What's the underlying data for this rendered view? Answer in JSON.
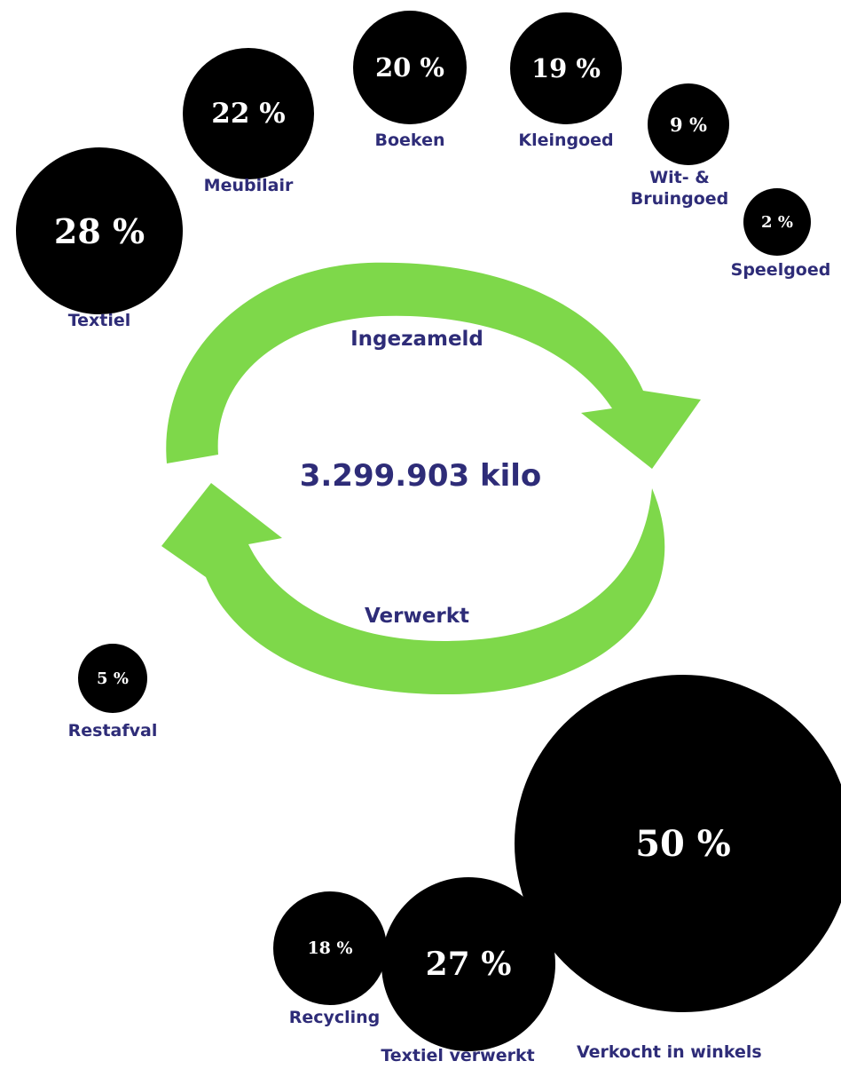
{
  "chart_data": [
    {
      "type": "bubble",
      "title": "Ingezameld",
      "categories": [
        "Textiel",
        "Meubilair",
        "Boeken",
        "Kleingoed",
        "Wit- & Bruingoed",
        "Speelgoed"
      ],
      "values": [
        28,
        22,
        20,
        19,
        9,
        2
      ],
      "value_labels": [
        "28 %",
        "22 %",
        "20 %",
        "19 %",
        "9 %",
        "2 %"
      ]
    },
    {
      "type": "bubble",
      "title": "Verwerkt",
      "categories": [
        "Restafval",
        "Recycling",
        "Textiel verwerkt",
        "Verkocht in winkels"
      ],
      "values": [
        5,
        18,
        27,
        50
      ],
      "value_labels": [
        "5 %",
        "18 %",
        "27 %",
        "50 %"
      ]
    }
  ],
  "center": {
    "total": "3.299.903 kilo",
    "top_label": "Ingezameld",
    "bottom_label": "Verwerkt"
  },
  "labels": {
    "textiel": "Textiel",
    "meubilair": "Meubilair",
    "boeken": "Boeken",
    "kleingoed": "Kleingoed",
    "witgoed_line1": "Wit- &",
    "witgoed_line2": "Bruingoed",
    "speelgoed": "Speelgoed",
    "restafval": "Restafval",
    "recycling": "Recycling",
    "textiel_verwerkt": "Textiel verwerkt",
    "verkocht": "Verkocht in winkels"
  },
  "values": {
    "textiel": "28 %",
    "meubilair": "22 %",
    "boeken": "20 %",
    "kleingoed": "19 %",
    "witgoed": "9 %",
    "speelgoed": "2 %",
    "restafval": "5 %",
    "recycling": "18 %",
    "textiel_verwerkt": "27 %",
    "verkocht": "50 %"
  },
  "colors": {
    "bubble": "#000000",
    "bubble_text": "#ffffff",
    "label": "#2e2c78",
    "arrow": "#7ed84a"
  }
}
